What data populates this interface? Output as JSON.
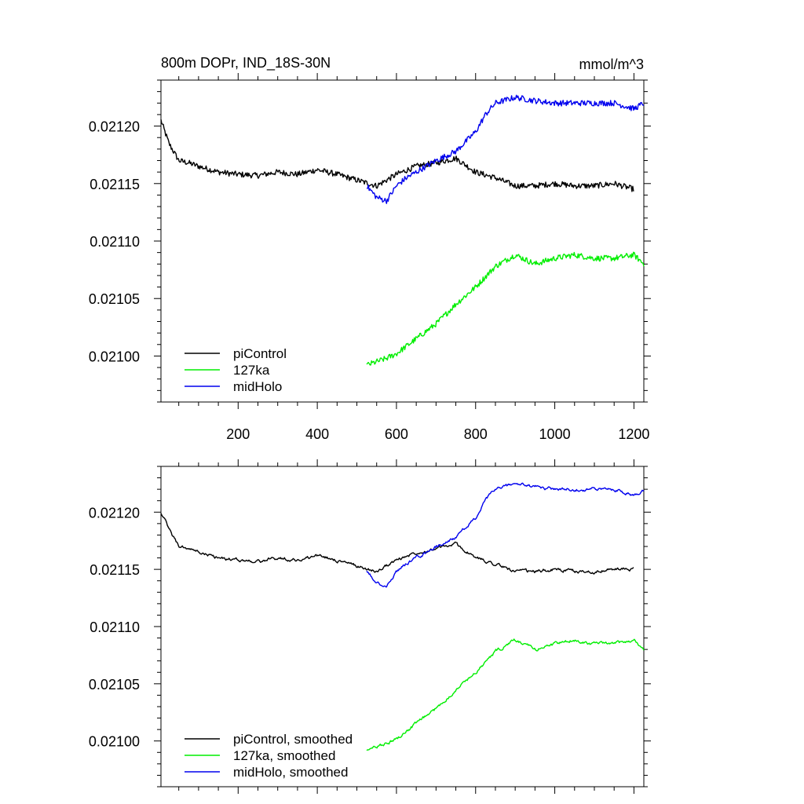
{
  "chart_data": [
    {
      "type": "line",
      "title": "800m DOPr, IND_18S-30N",
      "units": "mmol/m^3",
      "xlim": [
        5,
        1225
      ],
      "ylim": [
        0.02096,
        0.02124
      ],
      "x_ticks": [
        200,
        400,
        600,
        800,
        1000,
        1200
      ],
      "x_tick_labels": [
        "200",
        "400",
        "600",
        "800",
        "1000",
        "1200"
      ],
      "y_ticks": [
        0.021,
        0.02105,
        0.0211,
        0.02115,
        0.0212
      ],
      "y_tick_labels": [
        "0.02100",
        "0.02105",
        "0.02110",
        "0.02115",
        "0.02120"
      ],
      "legend_position": "bottom-left",
      "series": [
        {
          "name": "piControl",
          "color": "#000000",
          "x": [
            5,
            25,
            50,
            75,
            100,
            150,
            200,
            250,
            300,
            350,
            400,
            450,
            500,
            550,
            600,
            650,
            700,
            750,
            800,
            850,
            900,
            950,
            1000,
            1050,
            1100,
            1150,
            1200
          ],
          "y": [
            0.021205,
            0.021185,
            0.02117,
            0.021168,
            0.021165,
            0.02116,
            0.021158,
            0.021157,
            0.02116,
            0.021158,
            0.021162,
            0.021158,
            0.021153,
            0.021148,
            0.021158,
            0.021165,
            0.021168,
            0.021172,
            0.02116,
            0.021155,
            0.021148,
            0.021148,
            0.02115,
            0.021148,
            0.021148,
            0.02115,
            0.021145
          ],
          "noise": 2.5e-06
        },
        {
          "name": "127ka",
          "color": "#00ee00",
          "x": [
            525,
            550,
            575,
            600,
            650,
            700,
            750,
            800,
            850,
            900,
            950,
            1000,
            1050,
            1100,
            1150,
            1200,
            1225
          ],
          "y": [
            0.020992,
            0.020995,
            0.020998,
            0.021002,
            0.021015,
            0.021028,
            0.021045,
            0.02106,
            0.021078,
            0.021088,
            0.02108,
            0.021085,
            0.021088,
            0.021085,
            0.021085,
            0.021088,
            0.02108
          ],
          "noise": 2.5e-06
        },
        {
          "name": "midHolo",
          "color": "#0000ee",
          "x": [
            525,
            550,
            575,
            600,
            625,
            650,
            700,
            750,
            800,
            825,
            850,
            900,
            950,
            1000,
            1050,
            1100,
            1150,
            1200,
            1225
          ],
          "y": [
            0.021148,
            0.021138,
            0.021135,
            0.021148,
            0.021155,
            0.02116,
            0.02117,
            0.021178,
            0.021195,
            0.02121,
            0.02122,
            0.021225,
            0.021222,
            0.02122,
            0.02122,
            0.02122,
            0.02122,
            0.021215,
            0.02122
          ],
          "noise": 2.5e-06
        }
      ]
    },
    {
      "type": "line",
      "xlim": [
        5,
        1225
      ],
      "ylim": [
        0.02096,
        0.02124
      ],
      "x_ticks": [
        200,
        400,
        600,
        800,
        1000,
        1200
      ],
      "y_ticks": [
        0.021,
        0.02105,
        0.0211,
        0.02115,
        0.0212
      ],
      "y_tick_labels": [
        "0.02100",
        "0.02105",
        "0.02110",
        "0.02115",
        "0.02120"
      ],
      "legend_position": "bottom-left",
      "series": [
        {
          "name": "piControl, smoothed",
          "color": "#000000",
          "x": [
            5,
            25,
            50,
            75,
            100,
            150,
            200,
            250,
            300,
            350,
            400,
            450,
            500,
            550,
            600,
            650,
            700,
            750,
            800,
            850,
            900,
            950,
            1000,
            1050,
            1100,
            1150,
            1200
          ],
          "y": [
            0.0212,
            0.021185,
            0.02117,
            0.021168,
            0.021165,
            0.02116,
            0.021158,
            0.021157,
            0.02116,
            0.021158,
            0.021162,
            0.021158,
            0.021153,
            0.021148,
            0.021158,
            0.021165,
            0.021168,
            0.021172,
            0.02116,
            0.021155,
            0.021148,
            0.021148,
            0.02115,
            0.021148,
            0.021148,
            0.02115,
            0.02115
          ],
          "noise": 1.2e-06
        },
        {
          "name": "127ka, smoothed",
          "color": "#00ee00",
          "x": [
            525,
            550,
            575,
            600,
            650,
            700,
            750,
            800,
            850,
            900,
            950,
            1000,
            1050,
            1100,
            1150,
            1200,
            1225
          ],
          "y": [
            0.020992,
            0.020995,
            0.020998,
            0.021002,
            0.021015,
            0.021028,
            0.021045,
            0.02106,
            0.021078,
            0.021088,
            0.02108,
            0.021085,
            0.021088,
            0.021085,
            0.021085,
            0.021088,
            0.02108
          ],
          "noise": 1.2e-06
        },
        {
          "name": "midHolo, smoothed",
          "color": "#0000ee",
          "x": [
            525,
            550,
            575,
            600,
            625,
            650,
            700,
            750,
            800,
            825,
            850,
            900,
            950,
            1000,
            1050,
            1100,
            1150,
            1200,
            1225
          ],
          "y": [
            0.021148,
            0.021138,
            0.021135,
            0.021148,
            0.021155,
            0.02116,
            0.02117,
            0.021178,
            0.021195,
            0.02121,
            0.02122,
            0.021225,
            0.021222,
            0.02122,
            0.02122,
            0.02122,
            0.02122,
            0.021215,
            0.02122
          ],
          "noise": 1.2e-06
        }
      ]
    }
  ]
}
